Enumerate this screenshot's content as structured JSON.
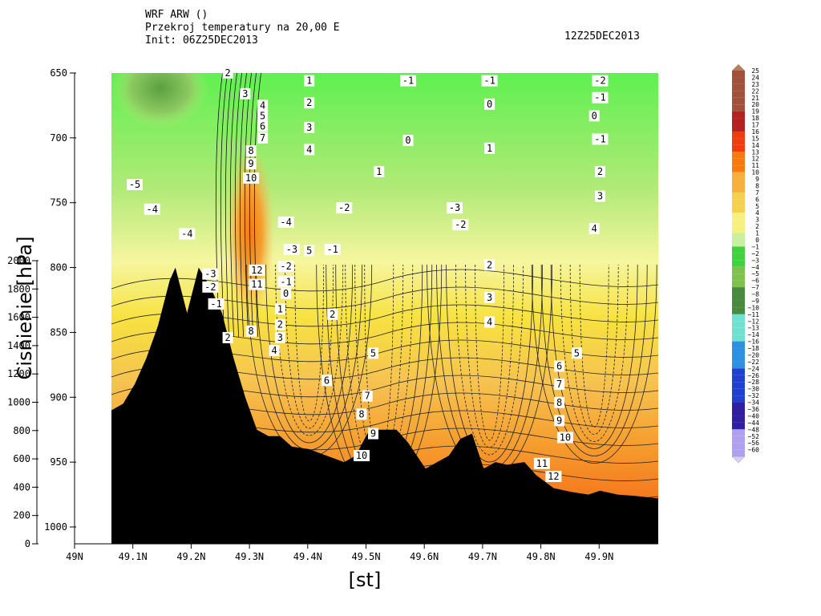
{
  "header": {
    "model": "WRF ARW ()",
    "subtitle": "Przekroj temperatury na 20,00 E",
    "init": "Init: 06Z25DEC2013",
    "valid": "12Z25DEC2013"
  },
  "chart_data": {
    "type": "heatmap",
    "title": "Przekroj temperatury na 20,00 E",
    "xlabel": "[st]",
    "ylabel": "Cisnienie [hPa]",
    "x_ticks": [
      "49N",
      "49.1N",
      "49.2N",
      "49.3N",
      "49.4N",
      "49.5N",
      "49.6N",
      "49.7N",
      "49.8N",
      "49.9N"
    ],
    "xlim": [
      49.06,
      50.0
    ],
    "y_pressure_ticks": [
      650,
      700,
      750,
      800,
      850,
      900,
      950,
      1000
    ],
    "ylim_hpa": [
      1000,
      650
    ],
    "height_ticks": [
      0,
      200,
      400,
      600,
      800,
      1000,
      1200,
      1400,
      1600,
      1800,
      2000
    ],
    "colorbar_levels": [
      25,
      24,
      23,
      22,
      21,
      20,
      19,
      18,
      17,
      16,
      15,
      14,
      13,
      12,
      11,
      10,
      9,
      8,
      7,
      6,
      5,
      4,
      3,
      2,
      1,
      0,
      -1,
      -2,
      -3,
      -4,
      -5,
      -6,
      -7,
      -8,
      -9,
      -10,
      -11,
      -12,
      -13,
      -14,
      -16,
      -18,
      -20,
      -22,
      -24,
      -26,
      -28,
      -30,
      -32,
      -34,
      -36,
      -40,
      -44,
      -48,
      -52,
      -56,
      -60
    ],
    "terrain_hpa": [
      [
        49.06,
        910
      ],
      [
        49.08,
        905
      ],
      [
        49.1,
        890
      ],
      [
        49.12,
        870
      ],
      [
        49.14,
        845
      ],
      [
        49.16,
        810
      ],
      [
        49.17,
        800
      ],
      [
        49.19,
        835
      ],
      [
        49.21,
        800
      ],
      [
        49.23,
        815
      ],
      [
        49.25,
        835
      ],
      [
        49.27,
        870
      ],
      [
        49.29,
        900
      ],
      [
        49.31,
        925
      ],
      [
        49.33,
        930
      ],
      [
        49.35,
        930
      ],
      [
        49.37,
        938
      ],
      [
        49.4,
        940
      ],
      [
        49.43,
        945
      ],
      [
        49.46,
        950
      ],
      [
        49.48,
        945
      ],
      [
        49.5,
        928
      ],
      [
        49.52,
        925
      ],
      [
        49.55,
        925
      ],
      [
        49.57,
        935
      ],
      [
        49.6,
        955
      ],
      [
        49.62,
        950
      ],
      [
        49.64,
        945
      ],
      [
        49.66,
        932
      ],
      [
        49.68,
        928
      ],
      [
        49.7,
        955
      ],
      [
        49.72,
        950
      ],
      [
        49.74,
        952
      ],
      [
        49.77,
        950
      ],
      [
        49.79,
        960
      ],
      [
        49.82,
        970
      ],
      [
        49.85,
        973
      ],
      [
        49.88,
        975
      ],
      [
        49.9,
        972
      ],
      [
        49.93,
        975
      ],
      [
        49.96,
        976
      ],
      [
        50.0,
        978
      ]
    ],
    "contour_labels": [
      {
        "lat": 49.26,
        "p": 650,
        "v": "2"
      },
      {
        "lat": 49.29,
        "p": 666,
        "v": "3"
      },
      {
        "lat": 49.32,
        "p": 675,
        "v": "4"
      },
      {
        "lat": 49.32,
        "p": 683,
        "v": "5"
      },
      {
        "lat": 49.32,
        "p": 691,
        "v": "6"
      },
      {
        "lat": 49.32,
        "p": 700,
        "v": "7"
      },
      {
        "lat": 49.3,
        "p": 710,
        "v": "8"
      },
      {
        "lat": 49.3,
        "p": 720,
        "v": "9"
      },
      {
        "lat": 49.3,
        "p": 731,
        "v": "10"
      },
      {
        "lat": 49.31,
        "p": 802,
        "v": "12"
      },
      {
        "lat": 49.31,
        "p": 813,
        "v": "11"
      },
      {
        "lat": 49.3,
        "p": 849,
        "v": "8"
      },
      {
        "lat": 49.1,
        "p": 736,
        "v": "-5"
      },
      {
        "lat": 49.13,
        "p": 755,
        "v": "-4"
      },
      {
        "lat": 49.19,
        "p": 774,
        "v": "-4"
      },
      {
        "lat": 49.23,
        "p": 805,
        "v": "-3"
      },
      {
        "lat": 49.23,
        "p": 815,
        "v": "-2"
      },
      {
        "lat": 49.24,
        "p": 828,
        "v": "-1"
      },
      {
        "lat": 49.26,
        "p": 854,
        "v": "2"
      },
      {
        "lat": 49.36,
        "p": 765,
        "v": "-4"
      },
      {
        "lat": 49.37,
        "p": 786,
        "v": "-3"
      },
      {
        "lat": 49.36,
        "p": 799,
        "v": "-2"
      },
      {
        "lat": 49.36,
        "p": 811,
        "v": "-1"
      },
      {
        "lat": 49.36,
        "p": 820,
        "v": "0"
      },
      {
        "lat": 49.35,
        "p": 832,
        "v": "1"
      },
      {
        "lat": 49.35,
        "p": 844,
        "v": "2"
      },
      {
        "lat": 49.35,
        "p": 854,
        "v": "3"
      },
      {
        "lat": 49.34,
        "p": 864,
        "v": "4"
      },
      {
        "lat": 49.4,
        "p": 656,
        "v": "1"
      },
      {
        "lat": 49.4,
        "p": 673,
        "v": "2"
      },
      {
        "lat": 49.4,
        "p": 692,
        "v": "3"
      },
      {
        "lat": 49.4,
        "p": 709,
        "v": "4"
      },
      {
        "lat": 49.4,
        "p": 787,
        "v": "5"
      },
      {
        "lat": 49.46,
        "p": 754,
        "v": "-2"
      },
      {
        "lat": 49.44,
        "p": 786,
        "v": "-1"
      },
      {
        "lat": 49.44,
        "p": 836,
        "v": "2"
      },
      {
        "lat": 49.57,
        "p": 656,
        "v": "-1"
      },
      {
        "lat": 49.57,
        "p": 702,
        "v": "0"
      },
      {
        "lat": 49.52,
        "p": 726,
        "v": "1"
      },
      {
        "lat": 49.65,
        "p": 754,
        "v": "-3"
      },
      {
        "lat": 49.66,
        "p": 767,
        "v": "-2"
      },
      {
        "lat": 49.71,
        "p": 656,
        "v": "-1"
      },
      {
        "lat": 49.71,
        "p": 674,
        "v": "0"
      },
      {
        "lat": 49.71,
        "p": 708,
        "v": "1"
      },
      {
        "lat": 49.71,
        "p": 798,
        "v": "2"
      },
      {
        "lat": 49.71,
        "p": 823,
        "v": "3"
      },
      {
        "lat": 49.71,
        "p": 842,
        "v": "4"
      },
      {
        "lat": 49.9,
        "p": 656,
        "v": "-2"
      },
      {
        "lat": 49.9,
        "p": 669,
        "v": "-1"
      },
      {
        "lat": 49.89,
        "p": 683,
        "v": "0"
      },
      {
        "lat": 49.9,
        "p": 701,
        "v": "-1"
      },
      {
        "lat": 49.9,
        "p": 726,
        "v": "2"
      },
      {
        "lat": 49.9,
        "p": 745,
        "v": "3"
      },
      {
        "lat": 49.89,
        "p": 770,
        "v": "4"
      },
      {
        "lat": 49.51,
        "p": 866,
        "v": "5"
      },
      {
        "lat": 49.86,
        "p": 866,
        "v": "5"
      },
      {
        "lat": 49.43,
        "p": 887,
        "v": "6"
      },
      {
        "lat": 49.83,
        "p": 876,
        "v": "6"
      },
      {
        "lat": 49.5,
        "p": 899,
        "v": "7"
      },
      {
        "lat": 49.83,
        "p": 890,
        "v": "7"
      },
      {
        "lat": 49.49,
        "p": 913,
        "v": "8"
      },
      {
        "lat": 49.83,
        "p": 904,
        "v": "8"
      },
      {
        "lat": 49.51,
        "p": 928,
        "v": "9"
      },
      {
        "lat": 49.83,
        "p": 918,
        "v": "9"
      },
      {
        "lat": 49.84,
        "p": 931,
        "v": "10"
      },
      {
        "lat": 49.49,
        "p": 945,
        "v": "10"
      },
      {
        "lat": 49.8,
        "p": 951,
        "v": "11"
      },
      {
        "lat": 49.82,
        "p": 961,
        "v": "12"
      }
    ]
  }
}
